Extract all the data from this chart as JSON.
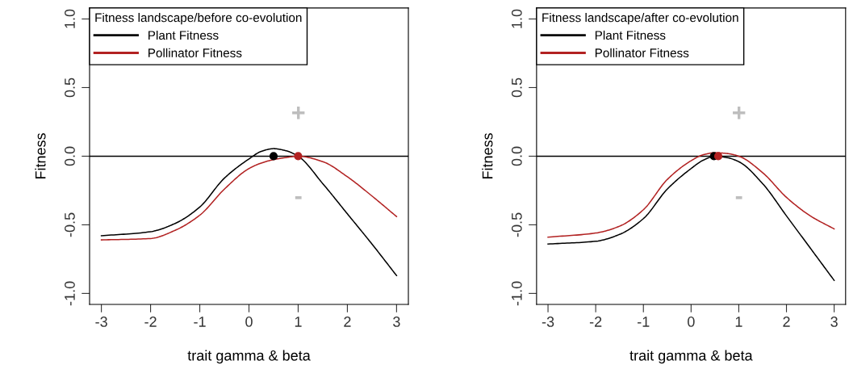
{
  "chart_data": [
    {
      "type": "line",
      "legend_title": "Fitness landscape/before co-evolution",
      "xlabel": "trait gamma & beta",
      "ylabel": "Fitness",
      "x": [
        -3,
        -2,
        -1.5,
        -1,
        -0.5,
        0,
        0.25,
        0.5,
        0.75,
        1,
        1.5,
        2,
        2.5,
        3
      ],
      "series": [
        {
          "name": "Plant Fitness",
          "color": "#000000",
          "values": [
            -0.58,
            -0.55,
            -0.49,
            -0.37,
            -0.16,
            -0.02,
            0.035,
            0.055,
            0.04,
            0,
            -0.2,
            -0.42,
            -0.64,
            -0.87
          ]
        },
        {
          "name": "Pollinator Fitness",
          "color": "#b22222",
          "values": [
            -0.61,
            -0.6,
            -0.54,
            -0.43,
            -0.24,
            -0.09,
            -0.05,
            -0.025,
            -0.01,
            0,
            -0.04,
            -0.15,
            -0.29,
            -0.44
          ]
        },
        {
          "type": "scatter",
          "marker": "circle",
          "color": "#000000",
          "x": [
            0.5
          ],
          "values": [
            0
          ]
        },
        {
          "type": "scatter",
          "marker": "circle",
          "color": "#b22222",
          "x": [
            1
          ],
          "values": [
            0
          ]
        }
      ],
      "ref_lines": [
        {
          "axis": "y",
          "value": 0,
          "color": "#000000"
        }
      ],
      "annotations": [
        "+",
        "-"
      ],
      "xlim": [
        -3.24,
        3.24
      ],
      "ylim": [
        -1.08,
        1.08
      ],
      "xticks": [
        -3,
        -2,
        -1,
        0,
        1,
        2,
        3
      ],
      "yticks": [
        {
          "value": -1,
          "label": "-1.0"
        },
        {
          "value": -0.5,
          "label": "-0.5"
        },
        {
          "value": 0,
          "label": "0.0"
        },
        {
          "value": 0.5,
          "label": "0.5"
        },
        {
          "value": 1,
          "label": "1.0"
        }
      ],
      "legend": "top left",
      "grid": false,
      "line_style": "solid"
    },
    {
      "type": "line",
      "legend_title": "Fitness landscape/after co-evolution",
      "xlabel": "trait gamma & beta",
      "ylabel": "Fitness",
      "x": [
        -3,
        -2,
        -1.5,
        -1,
        -0.5,
        0,
        0.25,
        0.5,
        0.75,
        1,
        1.5,
        2,
        2.5,
        3
      ],
      "series": [
        {
          "name": "Plant Fitness",
          "color": "#000000",
          "values": [
            -0.64,
            -0.62,
            -0.57,
            -0.455,
            -0.24,
            -0.09,
            -0.03,
            0,
            -0.01,
            -0.04,
            -0.2,
            -0.435,
            -0.67,
            -0.905
          ]
        },
        {
          "name": "Pollinator Fitness",
          "color": "#b22222",
          "values": [
            -0.59,
            -0.56,
            -0.51,
            -0.39,
            -0.17,
            -0.033,
            0.01,
            0.025,
            0.02,
            0,
            -0.12,
            -0.3,
            -0.435,
            -0.53
          ]
        },
        {
          "type": "scatter",
          "marker": "circle",
          "color": "#000000",
          "x": [
            0.48
          ],
          "values": [
            0
          ]
        },
        {
          "type": "scatter",
          "marker": "circle",
          "color": "#b22222",
          "x": [
            0.57
          ],
          "values": [
            0
          ]
        }
      ],
      "ref_lines": [
        {
          "axis": "y",
          "value": 0,
          "color": "#000000"
        }
      ],
      "annotations": [
        "+",
        "-"
      ],
      "xlim": [
        -3.24,
        3.24
      ],
      "ylim": [
        -1.08,
        1.08
      ],
      "xticks": [
        -3,
        -2,
        -1,
        0,
        1,
        2,
        3
      ],
      "yticks": [
        {
          "value": -1,
          "label": "-1.0"
        },
        {
          "value": -0.5,
          "label": "-0.5"
        },
        {
          "value": 0,
          "label": "0.0"
        },
        {
          "value": 0.5,
          "label": "0.5"
        },
        {
          "value": 1,
          "label": "1.0"
        }
      ],
      "legend": "top left",
      "grid": false,
      "line_style": "solid"
    }
  ]
}
